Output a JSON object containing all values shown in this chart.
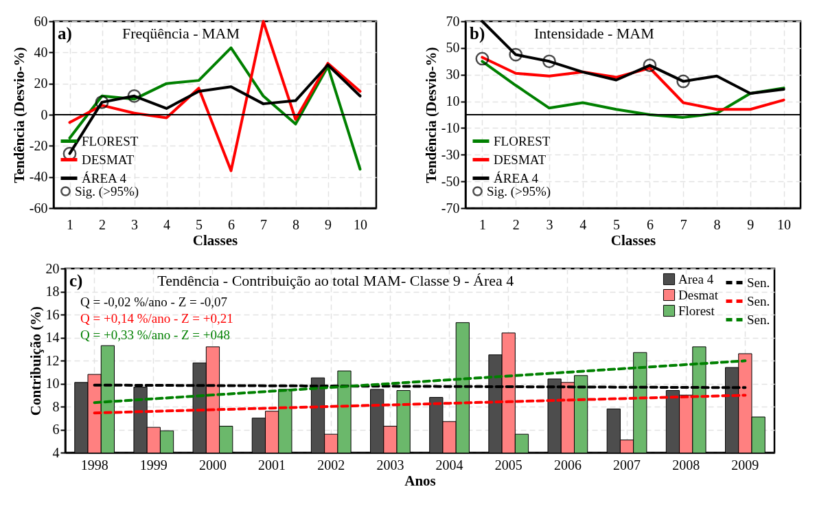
{
  "chart_data": [
    {
      "type": "line",
      "title": "Freqüência - MAM",
      "xlabel": "Classes",
      "ylabel": "Tendência (Desvio-%)",
      "categories": [
        "1",
        "2",
        "3",
        "4",
        "5",
        "6",
        "7",
        "8",
        "9",
        "10"
      ],
      "ylim": [
        -60,
        60
      ],
      "yticks": [
        -60,
        -40,
        -20,
        0,
        20,
        40,
        60
      ],
      "grid": true,
      "legend": "bottom left",
      "annotations": [
        "a)"
      ],
      "ref_lines": [
        {
          "axis": "y",
          "value": 0,
          "color": "#000000"
        }
      ],
      "series": [
        {
          "name": "FLOREST",
          "color": "#008000",
          "values": [
            -15,
            12,
            10,
            20,
            22,
            43,
            12,
            -6,
            31,
            -35
          ]
        },
        {
          "name": "DESMAT",
          "color": "#ff0000",
          "values": [
            -5,
            6,
            1,
            -2,
            17,
            -36,
            60,
            -3,
            33,
            15
          ]
        },
        {
          "name": "ÁREA 4",
          "color": "#000000",
          "values": [
            -25,
            8,
            12,
            4,
            15,
            18,
            7,
            9,
            32,
            12
          ]
        },
        {
          "name": "Sig. (>95%)",
          "type": "scatter",
          "marker": "circle",
          "color": "#000000",
          "values": [
            -25,
            8,
            12,
            null,
            null,
            null,
            null,
            null,
            null,
            null
          ]
        }
      ]
    },
    {
      "type": "line",
      "title": "Intensidade - MAM",
      "xlabel": "Classes",
      "ylabel": "Tendência (Desvio-%)",
      "categories": [
        "1",
        "2",
        "3",
        "4",
        "5",
        "6",
        "7",
        "8",
        "9",
        "10"
      ],
      "ylim": [
        -70,
        70
      ],
      "yticks": [
        -70,
        -50,
        -30,
        -10,
        10,
        30,
        50,
        70
      ],
      "grid": true,
      "legend": "bottom left",
      "annotations": [
        "b)"
      ],
      "ref_lines": [
        {
          "axis": "y",
          "value": 0,
          "color": "#000000"
        }
      ],
      "series": [
        {
          "name": "FLOREST",
          "color": "#008000",
          "values": [
            40,
            22,
            5,
            9,
            4,
            0,
            -2,
            1,
            16,
            20
          ]
        },
        {
          "name": "DESMAT",
          "color": "#ff0000",
          "values": [
            43,
            31,
            29,
            32,
            28,
            35,
            9,
            4,
            4,
            11
          ]
        },
        {
          "name": "ÁREA 4",
          "color": "#000000",
          "values": [
            70,
            45,
            40,
            32,
            26,
            37,
            25,
            29,
            16,
            19
          ]
        },
        {
          "name": "Sig. (>95%)",
          "type": "scatter",
          "marker": "circle",
          "color": "#000000",
          "values": [
            42,
            45,
            40,
            null,
            null,
            37,
            25,
            null,
            null,
            null
          ]
        }
      ]
    },
    {
      "type": "bar",
      "title": "Tendência - Contribuição ao total MAM- Classe 9 - Área 4",
      "xlabel": "Anos",
      "ylabel": "Contribuição (%)",
      "categories": [
        "1998",
        "1999",
        "2000",
        "2001",
        "2002",
        "2003",
        "2004",
        "2005",
        "2006",
        "2007",
        "2008",
        "2009"
      ],
      "ylim": [
        4,
        20
      ],
      "yticks": [
        4,
        6,
        8,
        10,
        12,
        14,
        16,
        18,
        20
      ],
      "grid": true,
      "legend": "top right",
      "line_style": "dashed",
      "annotations": [
        "c)",
        "Q = -0,02 %/ano  -  Z = -0,07",
        "Q = +0,14 %/ano  -  Z = +0,21",
        "Q = +0,33 %/ano  -  Z = +048"
      ],
      "series": [
        {
          "name": "Area 4",
          "color": "#4d4d4d",
          "values": [
            10.1,
            9.7,
            11.8,
            7.0,
            10.5,
            9.5,
            8.8,
            12.5,
            10.4,
            7.8,
            9.4,
            11.4
          ]
        },
        {
          "name": "Desmat",
          "color": "#ff8080",
          "values": [
            10.8,
            6.2,
            13.2,
            7.6,
            5.6,
            6.3,
            6.7,
            14.4,
            10.1,
            5.1,
            9.0,
            12.6
          ]
        },
        {
          "name": "Florest",
          "color": "#6bb86b",
          "values": [
            13.3,
            5.9,
            6.3,
            9.5,
            11.1,
            9.4,
            15.3,
            5.6,
            10.7,
            12.7,
            13.2,
            7.1
          ]
        },
        {
          "name": "Sen.",
          "type": "line",
          "color": "#000000",
          "values": [
            9.87,
            9.85,
            9.83,
            9.81,
            9.79,
            9.77,
            9.75,
            9.73,
            9.71,
            9.69,
            9.67,
            9.65
          ]
        },
        {
          "name": "Sen.",
          "type": "line",
          "color": "#ff0000",
          "values": [
            7.45,
            7.59,
            7.73,
            7.87,
            8.01,
            8.15,
            8.29,
            8.43,
            8.57,
            8.71,
            8.85,
            8.99
          ]
        },
        {
          "name": "Sen.",
          "type": "line",
          "color": "#008000",
          "values": [
            8.35,
            8.68,
            9.01,
            9.34,
            9.67,
            10.0,
            10.33,
            10.66,
            10.99,
            11.32,
            11.65,
            11.98
          ]
        }
      ]
    }
  ]
}
